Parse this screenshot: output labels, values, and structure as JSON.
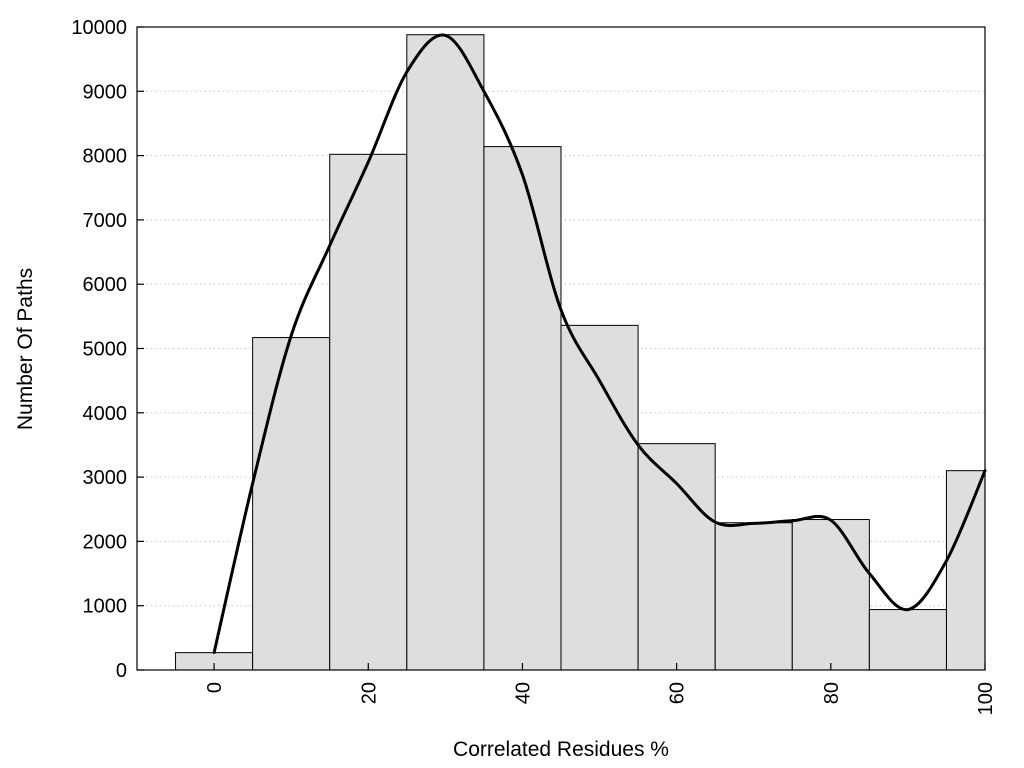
{
  "chart_data": {
    "type": "bar",
    "title": "",
    "xlabel": "Correlated Residues %",
    "ylabel": "Number Of Paths",
    "xlim": [
      -10,
      100
    ],
    "ylim": [
      0,
      10000
    ],
    "grid": true,
    "x_ticks": [
      "0",
      "20",
      "40",
      "60",
      "80",
      "100"
    ],
    "y_ticks": [
      "0",
      "1000",
      "2000",
      "3000",
      "4000",
      "5000",
      "6000",
      "7000",
      "8000",
      "9000",
      "10000"
    ],
    "bin_width": 10,
    "categories": [
      "0",
      "10",
      "20",
      "30",
      "40",
      "50",
      "60",
      "70",
      "80",
      "90",
      "100"
    ],
    "values": [
      270,
      5170,
      8020,
      9880,
      8140,
      5360,
      3520,
      2290,
      2340,
      940,
      3100
    ],
    "smooth_curve": {
      "x": [
        0,
        5,
        10,
        15,
        20,
        25,
        30,
        35,
        40,
        45,
        50,
        55,
        60,
        65,
        70,
        75,
        80,
        85,
        90,
        95,
        100
      ],
      "y": [
        270,
        2900,
        5200,
        6600,
        7900,
        9300,
        9870,
        9000,
        7700,
        5600,
        4500,
        3500,
        2900,
        2300,
        2280,
        2320,
        2330,
        1500,
        940,
        1700,
        3100
      ]
    },
    "colors": {
      "bar_fill": "#dedede",
      "bar_stroke": "#000000",
      "curve": "#000000",
      "grid": "#c8c8c8"
    }
  }
}
